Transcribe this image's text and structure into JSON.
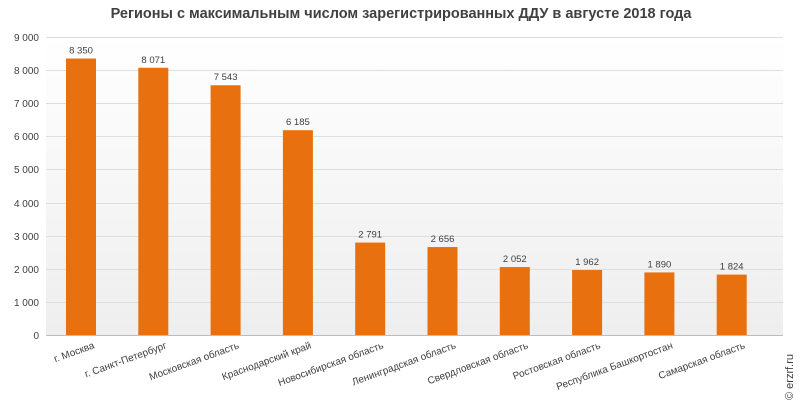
{
  "chart_data": {
    "type": "bar",
    "title": "Регионы с максимальным числом зарегистрированных ДДУ в августе 2018 года",
    "categories": [
      "г. Москва",
      "г. Санкт-Петербург",
      "Московская область",
      "Краснодарский край",
      "Новосибирская область",
      "Ленинградская область",
      "Свердловская область",
      "Ростовская область",
      "Республика Башкортостан",
      "Самарская область"
    ],
    "values": [
      8350,
      8071,
      7543,
      6185,
      2791,
      2656,
      2052,
      1962,
      1890,
      1824
    ],
    "value_labels": [
      "8 350",
      "8 071",
      "7 543",
      "6 185",
      "2 791",
      "2 656",
      "2 052",
      "1 962",
      "1 890",
      "1 824"
    ],
    "ylim": [
      0,
      9000
    ],
    "yticks": [
      0,
      1000,
      2000,
      3000,
      4000,
      5000,
      6000,
      7000,
      8000,
      9000
    ],
    "ytick_labels": [
      "0",
      "1 000",
      "2 000",
      "3 000",
      "4 000",
      "5 000",
      "6 000",
      "7 000",
      "8 000",
      "9 000"
    ],
    "grid": true,
    "bar_color": "#E8700E",
    "source": "© erzrf.ru"
  }
}
